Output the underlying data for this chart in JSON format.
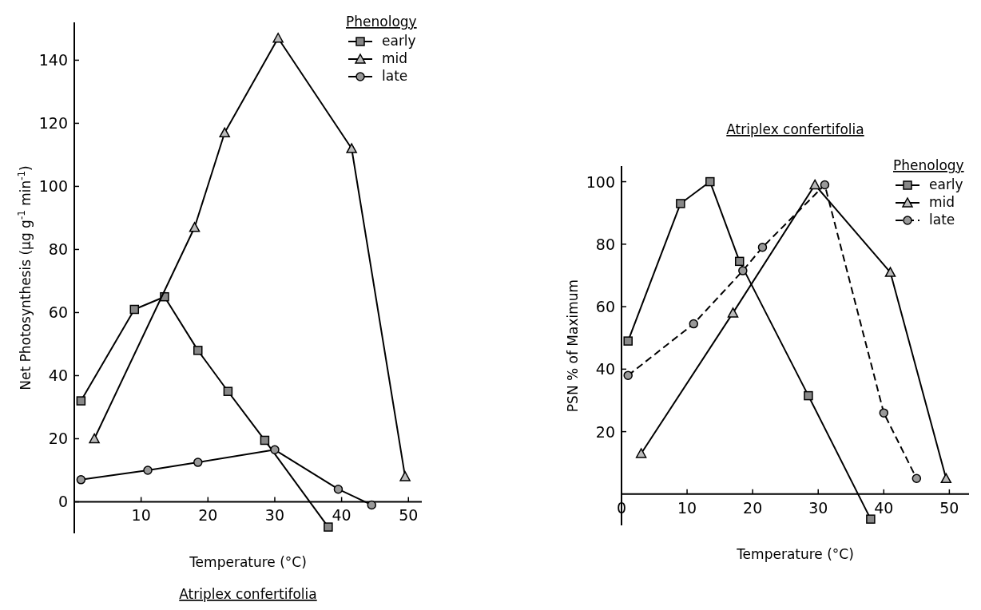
{
  "chart_data": [
    {
      "type": "line",
      "title": "Atriplex confertifolia",
      "xlabel": "Temperature (°C)",
      "ylabel": "Net Photosynthesis (μg g$^{-1}$ min$^{-1}$)",
      "legend_title": "Phenology",
      "legend": "top right",
      "xlim": [
        0,
        52
      ],
      "ylim": [
        -10,
        152
      ],
      "xticks": [
        10,
        20,
        30,
        40,
        50
      ],
      "yticks": [
        0,
        20,
        40,
        60,
        80,
        100,
        120,
        140
      ],
      "grid": false,
      "series": [
        {
          "name": "early",
          "color": "#000000",
          "marker": "square",
          "line_style": "solid",
          "x": [
            1,
            9,
            13.5,
            18.5,
            23,
            28.5,
            38
          ],
          "values": [
            32,
            61,
            65,
            48,
            35,
            19.5,
            -8
          ]
        },
        {
          "name": "mid",
          "color": "#000000",
          "marker": "triangle",
          "line_style": "solid",
          "x": [
            3,
            18,
            22.5,
            30.5,
            41.5,
            49.5
          ],
          "values": [
            20,
            87,
            117,
            147,
            112,
            8
          ]
        },
        {
          "name": "late",
          "color": "#000000",
          "marker": "circle",
          "line_style": "solid",
          "x": [
            1,
            11,
            18.5,
            30,
            39.5,
            44.5
          ],
          "values": [
            7,
            10,
            12.5,
            16.5,
            4,
            -1
          ]
        }
      ]
    },
    {
      "type": "line",
      "title": "Atriplex confertifolia",
      "xlabel": "Temperature (°C)",
      "ylabel": "PSN % of Maximum",
      "legend_title": "Phenology",
      "legend": "top right",
      "xlim": [
        0,
        53
      ],
      "ylim": [
        -10,
        105
      ],
      "xticks": [
        0,
        10,
        20,
        30,
        40,
        50
      ],
      "yticks": [
        20,
        40,
        60,
        80,
        100
      ],
      "grid": false,
      "series": [
        {
          "name": "early",
          "color": "#000000",
          "marker": "square",
          "line_style": "solid",
          "x": [
            1,
            9,
            13.5,
            18,
            28.5,
            38
          ],
          "values": [
            49,
            93,
            100,
            74.5,
            31.5,
            -8
          ]
        },
        {
          "name": "mid",
          "color": "#000000",
          "marker": "triangle",
          "line_style": "solid",
          "x": [
            3,
            17,
            29.5,
            41,
            49.5
          ],
          "values": [
            13,
            58,
            99,
            71,
            5
          ]
        },
        {
          "name": "late",
          "color": "#000000",
          "marker": "circle",
          "line_style": "dashed",
          "x": [
            1,
            11,
            18.5,
            21.5,
            31,
            40,
            45
          ],
          "values": [
            38,
            54.5,
            71.5,
            79,
            99,
            26,
            5
          ]
        }
      ]
    }
  ]
}
